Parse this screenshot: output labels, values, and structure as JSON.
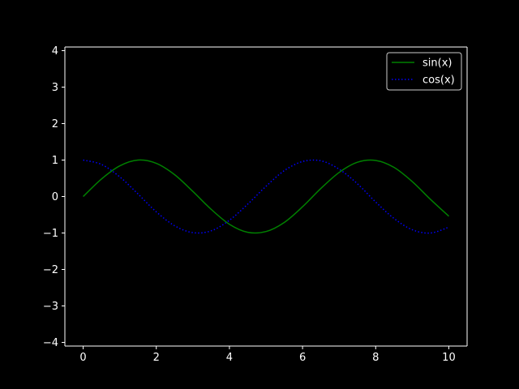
{
  "chart_data": {
    "type": "line",
    "title": "",
    "xlabel": "",
    "ylabel": "",
    "xlim": [
      -0.5,
      10.5
    ],
    "ylim": [
      -4.1,
      4.1
    ],
    "xticks": [
      0,
      2,
      4,
      6,
      8,
      10
    ],
    "xtick_labels": [
      "0",
      "2",
      "4",
      "6",
      "8",
      "10"
    ],
    "yticks": [
      -4,
      -3,
      -2,
      -1,
      0,
      1,
      2,
      3,
      4
    ],
    "ytick_labels": [
      "−4",
      "−3",
      "−2",
      "−1",
      "0",
      "1",
      "2",
      "3",
      "4"
    ],
    "grid": false,
    "legend_position": "top-right",
    "x": [
      0,
      0.5,
      1,
      1.5,
      2,
      2.5,
      3,
      3.5,
      4,
      4.5,
      5,
      5.5,
      6,
      6.5,
      7,
      7.5,
      8,
      8.5,
      9,
      9.5,
      10
    ],
    "series": [
      {
        "name": "sin(x)",
        "style": "solid",
        "color": "#008000",
        "values": [
          0,
          0.48,
          0.84,
          1.0,
          0.91,
          0.6,
          0.14,
          -0.35,
          -0.76,
          -0.98,
          -0.96,
          -0.71,
          -0.28,
          0.22,
          0.66,
          0.94,
          0.99,
          0.8,
          0.41,
          -0.08,
          -0.54
        ]
      },
      {
        "name": "cos(x)",
        "style": "dotted",
        "color": "#0000ff",
        "values": [
          1,
          0.88,
          0.54,
          0.07,
          -0.42,
          -0.8,
          -0.99,
          -0.94,
          -0.65,
          -0.21,
          0.28,
          0.71,
          0.96,
          0.98,
          0.75,
          0.35,
          -0.15,
          -0.6,
          -0.91,
          -1.0,
          -0.84
        ]
      }
    ]
  },
  "colors": {
    "background": "#000000",
    "axes": "#ffffff",
    "legend_background": "#000000",
    "legend_border": "#cccccc"
  }
}
